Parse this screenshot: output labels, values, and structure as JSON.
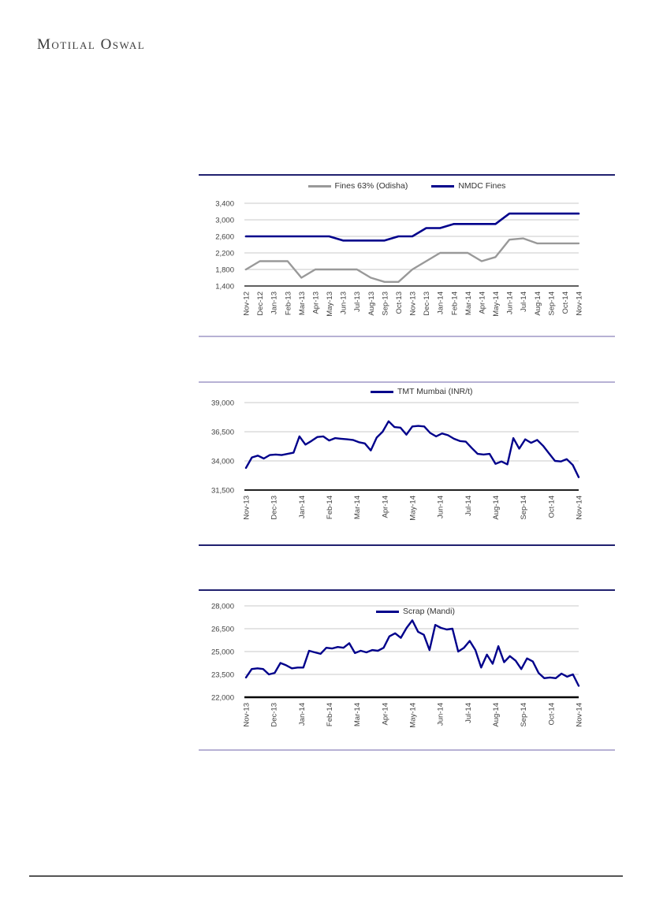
{
  "logo": {
    "text": "Motilal Oswal"
  },
  "colors": {
    "series_navy": "#00008B",
    "series_gray": "#999999",
    "border_navy": "#20206F",
    "border_lavender": "#B7B1D4",
    "gridline": "#C9C9C9",
    "axis": "#000000",
    "label_text": "#3F3F3F",
    "footer_rule": "#555555"
  },
  "chart_data": [
    {
      "type": "line",
      "title": "",
      "legend_position": "top-center",
      "grid": true,
      "ylim": [
        1400,
        3400
      ],
      "yticks": [
        "3,400",
        "3,000",
        "2,600",
        "2,200",
        "1,800",
        "1,400"
      ],
      "categories": [
        "Nov-12",
        "Dec-12",
        "Jan-13",
        "Feb-13",
        "Mar-13",
        "Apr-13",
        "May-13",
        "Jun-13",
        "Jul-13",
        "Aug-13",
        "Sep-13",
        "Oct-13",
        "Nov-13",
        "Dec-13",
        "Jan-14",
        "Feb-14",
        "Mar-14",
        "Apr-14",
        "May-14",
        "Jun-14",
        "Jul-14",
        "Aug-14",
        "Sep-14",
        "Oct-14",
        "Nov-14"
      ],
      "series": [
        {
          "name": "Fines 63% (Odisha)",
          "color": "#999999",
          "values": [
            1800,
            2000,
            2000,
            2000,
            1600,
            1800,
            1800,
            1800,
            1800,
            1600,
            1500,
            1500,
            1800,
            2000,
            2200,
            2200,
            2200,
            2000,
            2100,
            2520,
            2550,
            2430,
            2430,
            2430,
            2430
          ]
        },
        {
          "name": "NMDC Fines",
          "color": "#00008B",
          "values": [
            2600,
            2600,
            2600,
            2600,
            2600,
            2600,
            2600,
            2500,
            2500,
            2500,
            2500,
            2600,
            2600,
            2800,
            2800,
            2900,
            2900,
            2900,
            2900,
            3150,
            3150,
            3150,
            3150,
            3150,
            3150
          ]
        }
      ]
    },
    {
      "type": "line",
      "title": "",
      "legend_position": "top-center",
      "grid": true,
      "ylim": [
        31500,
        39000
      ],
      "yticks": [
        "39,000",
        "36,500",
        "34,000",
        "31,500"
      ],
      "categories": [
        "Nov-13",
        "Dec-13",
        "Jan-14",
        "Feb-14",
        "Mar-14",
        "Apr-14",
        "May-14",
        "Jun-14",
        "Jul-14",
        "Aug-14",
        "Sep-14",
        "Oct-14",
        "Nov-14"
      ],
      "series": [
        {
          "name": "TMT Mumbai (INR/t)",
          "color": "#00008B",
          "values": [
            33400,
            34300,
            34450,
            34200,
            34500,
            34550,
            34500,
            34600,
            34700,
            36100,
            35400,
            35700,
            36050,
            36100,
            35750,
            35950,
            35900,
            35850,
            35800,
            35600,
            35500,
            34900,
            36000,
            36500,
            37400,
            36900,
            36850,
            36250,
            36950,
            37000,
            36950,
            36400,
            36100,
            36350,
            36200,
            35900,
            35700,
            35650,
            35100,
            34600,
            34550,
            34600,
            33750,
            33950,
            33700,
            35950,
            35050,
            35850,
            35550,
            35800,
            35300,
            34650,
            34000,
            33950,
            34150,
            33650,
            32600
          ]
        }
      ]
    },
    {
      "type": "line",
      "title": "",
      "legend_position": "top-center",
      "grid": true,
      "ylim": [
        22000,
        28000
      ],
      "yticks": [
        "28,000",
        "26,500",
        "25,000",
        "23,500",
        "22,000"
      ],
      "categories": [
        "Nov-13",
        "Dec-13",
        "Jan-14",
        "Feb-14",
        "Mar-14",
        "Apr-14",
        "May-14",
        "Jun-14",
        "Jul-14",
        "Aug-14",
        "Sep-14",
        "Oct-14",
        "Nov-14"
      ],
      "series": [
        {
          "name": "Scrap (Mandi)",
          "color": "#00008B",
          "values": [
            23300,
            23850,
            23900,
            23850,
            23500,
            23600,
            24250,
            24100,
            23900,
            23950,
            23950,
            25050,
            24950,
            24850,
            25250,
            25200,
            25300,
            25250,
            25550,
            24900,
            25050,
            24950,
            25100,
            25050,
            25250,
            26000,
            26200,
            25900,
            26550,
            27050,
            26300,
            26100,
            25100,
            26750,
            26550,
            26450,
            26500,
            25000,
            25250,
            25700,
            25100,
            23950,
            24800,
            24200,
            25350,
            24300,
            24700,
            24400,
            23850,
            24550,
            24350,
            23600,
            23250,
            23300,
            23250,
            23550,
            23350,
            23500,
            22750
          ]
        }
      ]
    }
  ]
}
